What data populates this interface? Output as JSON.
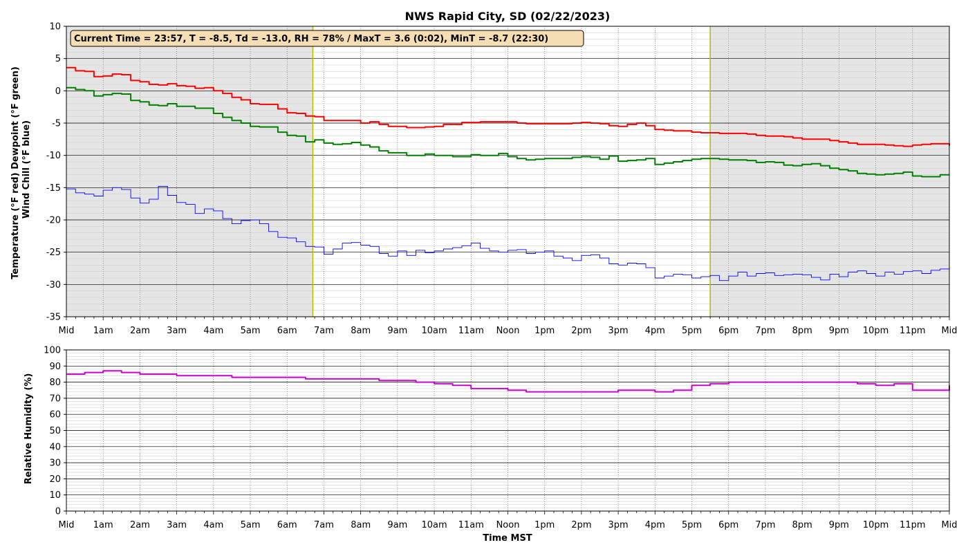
{
  "chart_data": [
    {
      "type": "line",
      "title": "NWS Rapid City, SD (02/22/2023)",
      "ylabel_line1": "Temperature (°F red)  Dewpoint (°F green)",
      "ylabel_line2": "Wind Chill (°F blue)",
      "info_box": "Current Time = 23:57, T = -8.5, Td = -13.0, RH = 78% / MaxT = 3.6 (0:02), MinT = -8.7 (22:30)",
      "xlim": [
        0,
        24
      ],
      "ylim": [
        -35,
        10
      ],
      "yticks": [
        -35,
        -30,
        -25,
        -20,
        -15,
        -10,
        -5,
        0,
        5,
        10
      ],
      "xtick_labels": [
        "Mid",
        "1am",
        "2am",
        "3am",
        "4am",
        "5am",
        "6am",
        "7am",
        "8am",
        "9am",
        "10am",
        "11am",
        "Noon",
        "1pm",
        "2pm",
        "3pm",
        "4pm",
        "5pm",
        "6pm",
        "7pm",
        "8pm",
        "9pm",
        "10pm",
        "11pm",
        "Mid"
      ],
      "night_shading": [
        [
          0,
          6.7
        ],
        [
          17.5,
          24
        ]
      ],
      "sunrise_sunset_lines": [
        6.7,
        17.5
      ],
      "grid": true,
      "series": [
        {
          "color": "#ff0000",
          "x": [
            0,
            0.25,
            0.5,
            0.75,
            1,
            1.25,
            1.5,
            1.75,
            2,
            2.25,
            2.5,
            2.75,
            3,
            3.25,
            3.5,
            3.75,
            4,
            4.25,
            4.5,
            4.75,
            5,
            5.25,
            5.5,
            5.75,
            6,
            6.25,
            6.5,
            6.75,
            7,
            7.25,
            7.5,
            7.75,
            8,
            8.25,
            8.5,
            8.75,
            9,
            9.25,
            9.5,
            9.75,
            10,
            10.25,
            10.5,
            10.75,
            11,
            11.25,
            11.5,
            11.75,
            12,
            12.25,
            12.5,
            12.75,
            13,
            13.25,
            13.5,
            13.75,
            14,
            14.25,
            14.5,
            14.75,
            15,
            15.25,
            15.5,
            15.75,
            16,
            16.25,
            16.5,
            16.75,
            17,
            17.25,
            17.5,
            17.75,
            18,
            18.25,
            18.5,
            18.75,
            19,
            19.25,
            19.5,
            19.75,
            20,
            20.25,
            20.5,
            20.75,
            21,
            21.25,
            21.5,
            21.75,
            22,
            22.25,
            22.5,
            22.75,
            23,
            23.25,
            23.5,
            23.75,
            24
          ],
          "y": [
            3.6,
            3.1,
            3.0,
            2.2,
            2.3,
            2.6,
            2.5,
            1.6,
            1.4,
            1.0,
            0.9,
            1.1,
            0.8,
            0.7,
            0.4,
            0.5,
            0.0,
            -0.4,
            -1.0,
            -1.4,
            -2.0,
            -2.1,
            -2.1,
            -2.8,
            -3.4,
            -3.5,
            -3.9,
            -4.0,
            -4.6,
            -4.6,
            -4.6,
            -4.6,
            -5.0,
            -4.8,
            -5.2,
            -5.5,
            -5.5,
            -5.7,
            -5.7,
            -5.6,
            -5.5,
            -5.2,
            -5.2,
            -4.9,
            -4.9,
            -4.8,
            -4.8,
            -4.8,
            -4.8,
            -5.0,
            -5.1,
            -5.1,
            -5.1,
            -5.1,
            -5.1,
            -5.0,
            -4.9,
            -5.0,
            -5.1,
            -5.4,
            -5.5,
            -5.2,
            -5.0,
            -5.4,
            -6.0,
            -6.1,
            -6.2,
            -6.2,
            -6.4,
            -6.5,
            -6.5,
            -6.6,
            -6.6,
            -6.6,
            -6.7,
            -6.9,
            -7.0,
            -7.0,
            -7.1,
            -7.3,
            -7.5,
            -7.5,
            -7.5,
            -7.7,
            -7.9,
            -8.1,
            -8.3,
            -8.3,
            -8.3,
            -8.4,
            -8.5,
            -8.6,
            -8.4,
            -8.3,
            -8.2,
            -8.2,
            -8.5
          ]
        },
        {
          "color": "#008000",
          "x": [
            0,
            0.25,
            0.5,
            0.75,
            1,
            1.25,
            1.5,
            1.75,
            2,
            2.25,
            2.5,
            2.75,
            3,
            3.25,
            3.5,
            3.75,
            4,
            4.25,
            4.5,
            4.75,
            5,
            5.25,
            5.5,
            5.75,
            6,
            6.25,
            6.5,
            6.75,
            7,
            7.25,
            7.5,
            7.75,
            8,
            8.25,
            8.5,
            8.75,
            9,
            9.25,
            9.5,
            9.75,
            10,
            10.25,
            10.5,
            10.75,
            11,
            11.25,
            11.5,
            11.75,
            12,
            12.25,
            12.5,
            12.75,
            13,
            13.25,
            13.5,
            13.75,
            14,
            14.25,
            14.5,
            14.75,
            15,
            15.25,
            15.5,
            15.75,
            16,
            16.25,
            16.5,
            16.75,
            17,
            17.25,
            17.5,
            17.75,
            18,
            18.25,
            18.5,
            18.75,
            19,
            19.25,
            19.5,
            19.75,
            20,
            20.25,
            20.5,
            20.75,
            21,
            21.25,
            21.5,
            21.75,
            22,
            22.25,
            22.5,
            22.75,
            23,
            23.25,
            23.5,
            23.75,
            24
          ],
          "y": [
            0.5,
            0.2,
            0.0,
            -0.8,
            -0.6,
            -0.4,
            -0.5,
            -1.5,
            -1.7,
            -2.2,
            -2.3,
            -2.0,
            -2.4,
            -2.4,
            -2.7,
            -2.7,
            -3.5,
            -4.1,
            -4.6,
            -5.0,
            -5.5,
            -5.6,
            -5.6,
            -6.4,
            -6.9,
            -7.0,
            -7.9,
            -7.6,
            -8.1,
            -8.3,
            -8.2,
            -8.0,
            -8.4,
            -8.7,
            -9.3,
            -9.6,
            -9.6,
            -10.0,
            -10.0,
            -9.8,
            -10.0,
            -10.0,
            -10.2,
            -10.2,
            -9.9,
            -10.0,
            -10.0,
            -9.7,
            -10.2,
            -10.5,
            -10.7,
            -10.6,
            -10.5,
            -10.5,
            -10.5,
            -10.3,
            -10.2,
            -10.3,
            -10.6,
            -10.1,
            -10.9,
            -10.8,
            -10.7,
            -10.5,
            -11.4,
            -11.2,
            -11.0,
            -10.8,
            -10.6,
            -10.5,
            -10.5,
            -10.6,
            -10.7,
            -10.7,
            -10.8,
            -11.1,
            -11.0,
            -11.1,
            -11.5,
            -11.6,
            -11.4,
            -11.3,
            -11.6,
            -12.0,
            -12.2,
            -12.4,
            -12.8,
            -12.9,
            -13.0,
            -12.9,
            -12.8,
            -12.6,
            -13.2,
            -13.3,
            -13.3,
            -13.0,
            -13.0
          ]
        },
        {
          "color": "#0000ff",
          "x": [
            0,
            0.25,
            0.5,
            0.75,
            1,
            1.25,
            1.5,
            1.75,
            2,
            2.25,
            2.5,
            2.75,
            3,
            3.25,
            3.5,
            3.75,
            4,
            4.25,
            4.5,
            4.75,
            5,
            5.25,
            5.5,
            5.75,
            6,
            6.25,
            6.5,
            6.75,
            7,
            7.25,
            7.5,
            7.75,
            8,
            8.25,
            8.5,
            8.75,
            9,
            9.25,
            9.5,
            9.75,
            10,
            10.25,
            10.5,
            10.75,
            11,
            11.25,
            11.5,
            11.75,
            12,
            12.25,
            12.5,
            12.75,
            13,
            13.25,
            13.5,
            13.75,
            14,
            14.25,
            14.5,
            14.75,
            15,
            15.25,
            15.5,
            15.75,
            16,
            16.25,
            16.5,
            16.75,
            17,
            17.25,
            17.5,
            17.75,
            18,
            18.25,
            18.5,
            18.75,
            19,
            19.25,
            19.5,
            19.75,
            20,
            20.25,
            20.5,
            20.75,
            21,
            21.25,
            21.5,
            21.75,
            22,
            22.25,
            22.5,
            22.75,
            23,
            23.25,
            23.5,
            23.75,
            24
          ],
          "y": [
            -15.2,
            -15.8,
            -16.0,
            -16.3,
            -15.4,
            -15.0,
            -15.3,
            -16.6,
            -17.4,
            -16.8,
            -14.8,
            -16.2,
            -17.3,
            -17.6,
            -19.0,
            -18.3,
            -18.6,
            -19.8,
            -20.6,
            -20.1,
            -20.0,
            -20.6,
            -21.8,
            -22.7,
            -22.8,
            -23.4,
            -24.1,
            -24.2,
            -25.3,
            -24.5,
            -23.6,
            -23.5,
            -23.9,
            -24.1,
            -25.2,
            -25.6,
            -24.8,
            -25.5,
            -24.7,
            -25.1,
            -24.8,
            -24.5,
            -24.3,
            -24.0,
            -23.6,
            -24.4,
            -24.8,
            -25.0,
            -24.7,
            -24.6,
            -25.2,
            -25.0,
            -24.8,
            -25.6,
            -25.9,
            -26.3,
            -25.5,
            -25.4,
            -25.9,
            -26.8,
            -27.0,
            -26.7,
            -26.8,
            -27.4,
            -29.0,
            -28.7,
            -28.4,
            -28.5,
            -29.0,
            -28.8,
            -28.6,
            -29.4,
            -28.7,
            -28.1,
            -28.7,
            -28.3,
            -28.2,
            -28.6,
            -28.5,
            -28.4,
            -28.5,
            -28.9,
            -29.3,
            -28.4,
            -28.8,
            -28.1,
            -27.9,
            -28.3,
            -28.7,
            -28.1,
            -28.4,
            -28.0,
            -27.9,
            -28.3,
            -27.8,
            -27.6,
            -28.0
          ]
        }
      ]
    },
    {
      "type": "line",
      "xlabel": "Time MST",
      "ylabel": "Relative Humidity (%)",
      "xlim": [
        0,
        24
      ],
      "ylim": [
        0,
        100
      ],
      "yticks": [
        0,
        10,
        20,
        30,
        40,
        50,
        60,
        70,
        80,
        90,
        100
      ],
      "xtick_labels": [
        "Mid",
        "1am",
        "2am",
        "3am",
        "4am",
        "5am",
        "6am",
        "7am",
        "8am",
        "9am",
        "10am",
        "11am",
        "Noon",
        "1pm",
        "2pm",
        "3pm",
        "4pm",
        "5pm",
        "6pm",
        "7pm",
        "8pm",
        "9pm",
        "10pm",
        "11pm",
        "Mid"
      ],
      "grid": true,
      "series": [
        {
          "color": "#cc00cc",
          "x": [
            0,
            0.5,
            1,
            1.5,
            2,
            2.5,
            3,
            3.5,
            4,
            4.5,
            5,
            5.5,
            6,
            6.5,
            7,
            7.5,
            8,
            8.5,
            9,
            9.5,
            10,
            10.5,
            11,
            11.5,
            12,
            12.5,
            13,
            13.5,
            14,
            14.5,
            15,
            15.5,
            16,
            16.5,
            17,
            17.5,
            18,
            18.5,
            19,
            19.5,
            20,
            20.5,
            21,
            21.5,
            22,
            22.5,
            23,
            23.5,
            24
          ],
          "y": [
            85,
            86,
            87,
            86,
            85,
            85,
            84,
            84,
            84,
            83,
            83,
            83,
            83,
            82,
            82,
            82,
            82,
            81,
            81,
            80,
            79,
            78,
            76,
            76,
            75,
            74,
            74,
            74,
            74,
            74,
            75,
            75,
            74,
            75,
            78,
            79,
            80,
            80,
            80,
            80,
            80,
            80,
            80,
            79,
            78,
            79,
            75,
            75,
            78
          ]
        }
      ]
    }
  ]
}
